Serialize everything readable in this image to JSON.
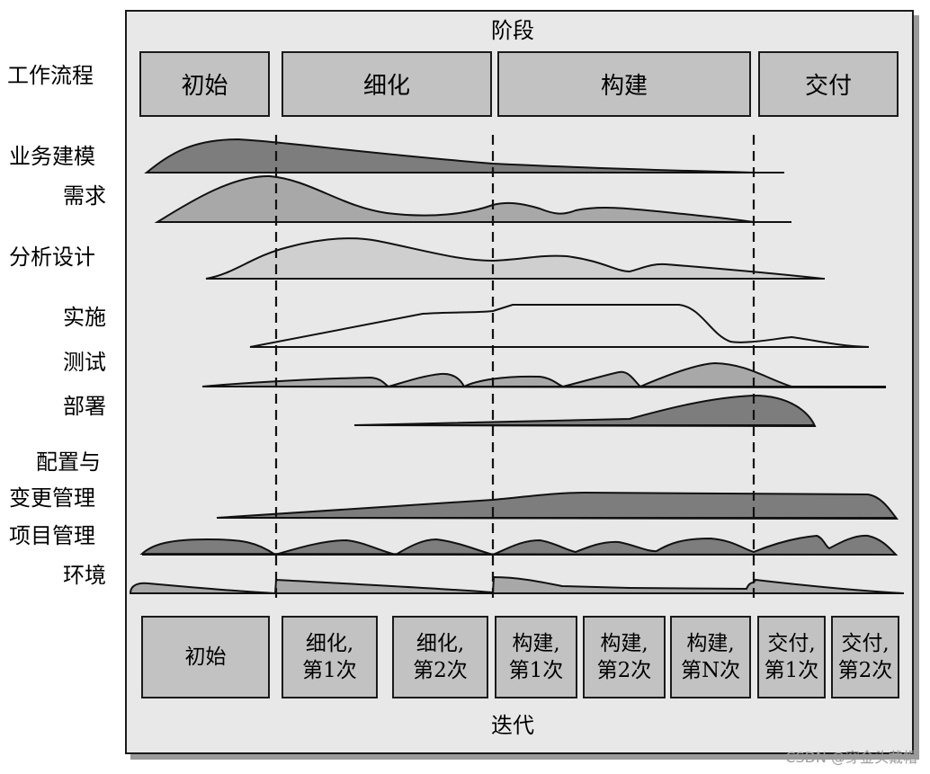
{
  "title_top": "阶段",
  "title_bottom": "迭代",
  "workflow_header": "工作流程",
  "phases": [
    "初始",
    "细化",
    "构建",
    "交付"
  ],
  "disciplines": [
    "业务建模",
    "需求",
    "分析设计",
    "实施",
    "测试",
    "部署",
    "配置与",
    "变更管理",
    "项目管理",
    "环境"
  ],
  "iterations": [
    {
      "line1": "初始",
      "line2": ""
    },
    {
      "line1": "细化,",
      "line2": "第1次"
    },
    {
      "line1": "细化,",
      "line2": "第2次"
    },
    {
      "line1": "构建,",
      "line2": "第1次"
    },
    {
      "line1": "构建,",
      "line2": "第2次"
    },
    {
      "line1": "构建,",
      "line2": "第N次"
    },
    {
      "line1": "交付,",
      "line2": "第1次"
    },
    {
      "line1": "交付,",
      "line2": "第2次"
    }
  ],
  "watermark": "CSDN @穿金头戴帽",
  "colors": {
    "dark_hump": "#7d7d7d",
    "mid_hump": "#a8a8a8",
    "light_hump": "#cfcfcf",
    "box": "#c2c2c2",
    "frame_bg": "#e8e8e8"
  }
}
